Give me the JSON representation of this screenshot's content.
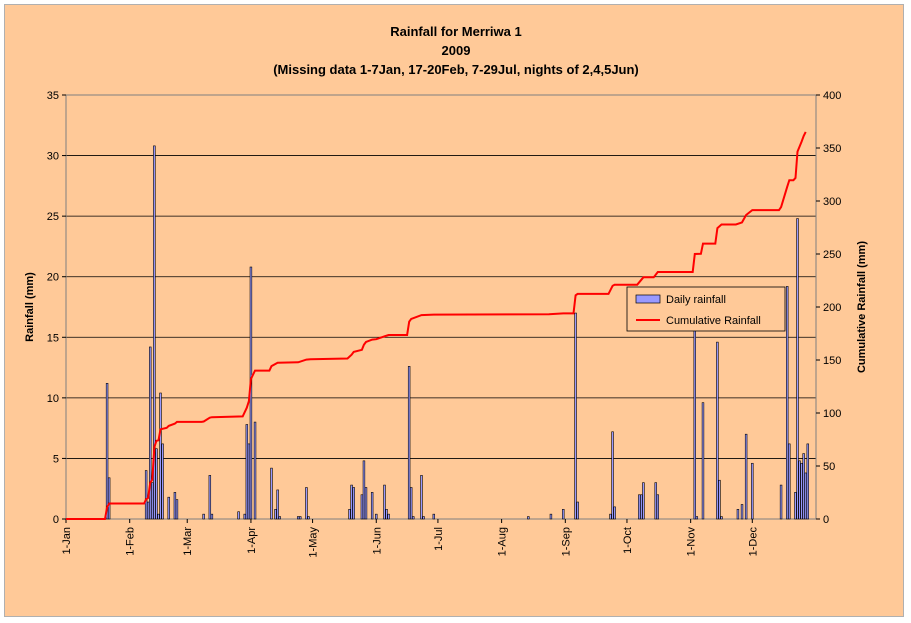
{
  "chart_data": {
    "type": "bar",
    "title": [
      "Rainfall for Merriwa 1",
      "2009",
      "(Missing data 1-7Jan, 17-20Feb, 7-29Jul, nights of 2,4,5Jun)"
    ],
    "xlabel": "",
    "ylabel": "Rainfall (mm)",
    "y2label": "Cumulative Rainfall (mm)",
    "ylim": [
      0,
      35
    ],
    "y2lim": [
      0,
      400
    ],
    "yticks": [
      0,
      5,
      10,
      15,
      20,
      25,
      30,
      35
    ],
    "y2ticks": [
      0,
      50,
      100,
      150,
      200,
      250,
      300,
      350,
      400
    ],
    "xticks": [
      {
        "label": "1-Jan",
        "day": 1
      },
      {
        "label": "1-Feb",
        "day": 32
      },
      {
        "label": "1-Mar",
        "day": 60
      },
      {
        "label": "1-Apr",
        "day": 91
      },
      {
        "label": "1-May",
        "day": 121
      },
      {
        "label": "1-Jun",
        "day": 152
      },
      {
        "label": "1-Jul",
        "day": 182
      },
      {
        "label": "1-Aug",
        "day": 213
      },
      {
        "label": "1-Sep",
        "day": 244
      },
      {
        "label": "1-Oct",
        "day": 274
      },
      {
        "label": "1-Nov",
        "day": 305
      },
      {
        "label": "1-Dec",
        "day": 335
      }
    ],
    "grid": true,
    "legend_position": "right",
    "series": [
      {
        "name": "Daily rainfall",
        "kind": "bar",
        "color": "#9999ff",
        "points": [
          {
            "day": 21,
            "value": 11.2
          },
          {
            "day": 22,
            "value": 3.4
          },
          {
            "day": 40,
            "value": 4.0
          },
          {
            "day": 41,
            "value": 1.4
          },
          {
            "day": 42,
            "value": 14.2
          },
          {
            "day": 43,
            "value": 3.0
          },
          {
            "day": 44,
            "value": 30.8
          },
          {
            "day": 45,
            "value": 5.8
          },
          {
            "day": 46,
            "value": 0.4
          },
          {
            "day": 47,
            "value": 10.4
          },
          {
            "day": 48,
            "value": 6.2
          },
          {
            "day": 51,
            "value": 1.8
          },
          {
            "day": 54,
            "value": 2.2
          },
          {
            "day": 55,
            "value": 1.6
          },
          {
            "day": 68,
            "value": 0.4
          },
          {
            "day": 71,
            "value": 3.6
          },
          {
            "day": 72,
            "value": 0.4
          },
          {
            "day": 85,
            "value": 0.6
          },
          {
            "day": 88,
            "value": 0.4
          },
          {
            "day": 89,
            "value": 7.8
          },
          {
            "day": 90,
            "value": 6.2
          },
          {
            "day": 91,
            "value": 20.8
          },
          {
            "day": 93,
            "value": 8.0
          },
          {
            "day": 101,
            "value": 4.2
          },
          {
            "day": 103,
            "value": 0.8
          },
          {
            "day": 104,
            "value": 2.4
          },
          {
            "day": 105,
            "value": 0.2
          },
          {
            "day": 114,
            "value": 0.2
          },
          {
            "day": 115,
            "value": 0.2
          },
          {
            "day": 118,
            "value": 2.6
          },
          {
            "day": 119,
            "value": 0.2
          },
          {
            "day": 139,
            "value": 0.8
          },
          {
            "day": 140,
            "value": 2.8
          },
          {
            "day": 141,
            "value": 2.6
          },
          {
            "day": 145,
            "value": 2.0
          },
          {
            "day": 146,
            "value": 4.8
          },
          {
            "day": 147,
            "value": 2.6
          },
          {
            "day": 150,
            "value": 2.2
          },
          {
            "day": 152,
            "value": 0.4
          },
          {
            "day": 156,
            "value": 2.8
          },
          {
            "day": 157,
            "value": 0.8
          },
          {
            "day": 158,
            "value": 0.4
          },
          {
            "day": 168,
            "value": 12.6
          },
          {
            "day": 169,
            "value": 2.6
          },
          {
            "day": 170,
            "value": 0.2
          },
          {
            "day": 174,
            "value": 3.6
          },
          {
            "day": 175,
            "value": 0.2
          },
          {
            "day": 180,
            "value": 0.4
          },
          {
            "day": 226,
            "value": 0.2
          },
          {
            "day": 237,
            "value": 0.4
          },
          {
            "day": 243,
            "value": 0.8
          },
          {
            "day": 249,
            "value": 17.0
          },
          {
            "day": 250,
            "value": 1.4
          },
          {
            "day": 266,
            "value": 0.4
          },
          {
            "day": 267,
            "value": 7.2
          },
          {
            "day": 268,
            "value": 1.0
          },
          {
            "day": 280,
            "value": 2.0
          },
          {
            "day": 281,
            "value": 2.0
          },
          {
            "day": 282,
            "value": 3.0
          },
          {
            "day": 288,
            "value": 3.0
          },
          {
            "day": 289,
            "value": 2.0
          },
          {
            "day": 307,
            "value": 17.0
          },
          {
            "day": 308,
            "value": 0.2
          },
          {
            "day": 311,
            "value": 9.6
          },
          {
            "day": 318,
            "value": 14.6
          },
          {
            "day": 319,
            "value": 3.2
          },
          {
            "day": 320,
            "value": 0.2
          },
          {
            "day": 328,
            "value": 0.8
          },
          {
            "day": 330,
            "value": 1.2
          },
          {
            "day": 332,
            "value": 7.0
          },
          {
            "day": 335,
            "value": 4.6
          },
          {
            "day": 349,
            "value": 2.8
          },
          {
            "day": 352,
            "value": 19.2
          },
          {
            "day": 353,
            "value": 6.2
          },
          {
            "day": 356,
            "value": 2.2
          },
          {
            "day": 357,
            "value": 24.8
          },
          {
            "day": 358,
            "value": 4.8
          },
          {
            "day": 359,
            "value": 4.6
          },
          {
            "day": 360,
            "value": 5.4
          },
          {
            "day": 361,
            "value": 3.8
          },
          {
            "day": 362,
            "value": 6.2
          }
        ]
      },
      {
        "name": "Cumulative Rainfall",
        "kind": "line",
        "axis": "right",
        "color": "#ff0000",
        "points": [
          {
            "day": 1,
            "value": 0
          },
          {
            "day": 20,
            "value": 0
          },
          {
            "day": 21,
            "value": 11.2
          },
          {
            "day": 22,
            "value": 14.6
          },
          {
            "day": 39,
            "value": 14.6
          },
          {
            "day": 40,
            "value": 18.6
          },
          {
            "day": 41,
            "value": 20.0
          },
          {
            "day": 42,
            "value": 34.2
          },
          {
            "day": 43,
            "value": 37.2
          },
          {
            "day": 44,
            "value": 68.0
          },
          {
            "day": 45,
            "value": 73.8
          },
          {
            "day": 46,
            "value": 74.2
          },
          {
            "day": 47,
            "value": 84.6
          },
          {
            "day": 50,
            "value": 86.0
          },
          {
            "day": 51,
            "value": 87.8
          },
          {
            "day": 54,
            "value": 90.0
          },
          {
            "day": 55,
            "value": 91.6
          },
          {
            "day": 67,
            "value": 91.6
          },
          {
            "day": 68,
            "value": 92.0
          },
          {
            "day": 71,
            "value": 95.6
          },
          {
            "day": 72,
            "value": 96.0
          },
          {
            "day": 87,
            "value": 96.8
          },
          {
            "day": 89,
            "value": 105.0
          },
          {
            "day": 90,
            "value": 111.2
          },
          {
            "day": 91,
            "value": 132.0
          },
          {
            "day": 93,
            "value": 140.0
          },
          {
            "day": 100,
            "value": 140.0
          },
          {
            "day": 101,
            "value": 144.2
          },
          {
            "day": 104,
            "value": 147.4
          },
          {
            "day": 114,
            "value": 147.8
          },
          {
            "day": 118,
            "value": 150.4
          },
          {
            "day": 120,
            "value": 150.8
          },
          {
            "day": 138,
            "value": 151.4
          },
          {
            "day": 140,
            "value": 155.0
          },
          {
            "day": 141,
            "value": 157.6
          },
          {
            "day": 145,
            "value": 159.6
          },
          {
            "day": 146,
            "value": 164.4
          },
          {
            "day": 147,
            "value": 167.0
          },
          {
            "day": 150,
            "value": 169.2
          },
          {
            "day": 152,
            "value": 169.6
          },
          {
            "day": 156,
            "value": 172.4
          },
          {
            "day": 158,
            "value": 173.6
          },
          {
            "day": 167,
            "value": 173.6
          },
          {
            "day": 168,
            "value": 186.2
          },
          {
            "day": 169,
            "value": 188.8
          },
          {
            "day": 174,
            "value": 192.4
          },
          {
            "day": 180,
            "value": 192.8
          },
          {
            "day": 236,
            "value": 193.2
          },
          {
            "day": 243,
            "value": 194.0
          },
          {
            "day": 248,
            "value": 194.0
          },
          {
            "day": 249,
            "value": 211.0
          },
          {
            "day": 250,
            "value": 212.4
          },
          {
            "day": 265,
            "value": 212.4
          },
          {
            "day": 267,
            "value": 220.0
          },
          {
            "day": 268,
            "value": 221.0
          },
          {
            "day": 279,
            "value": 221.0
          },
          {
            "day": 282,
            "value": 228.0
          },
          {
            "day": 287,
            "value": 228.0
          },
          {
            "day": 289,
            "value": 233.0
          },
          {
            "day": 306,
            "value": 233.0
          },
          {
            "day": 307,
            "value": 250.0
          },
          {
            "day": 310,
            "value": 250.2
          },
          {
            "day": 311,
            "value": 259.8
          },
          {
            "day": 317,
            "value": 259.8
          },
          {
            "day": 318,
            "value": 274.4
          },
          {
            "day": 320,
            "value": 277.8
          },
          {
            "day": 327,
            "value": 277.8
          },
          {
            "day": 330,
            "value": 279.8
          },
          {
            "day": 332,
            "value": 286.8
          },
          {
            "day": 335,
            "value": 291.4
          },
          {
            "day": 348,
            "value": 291.4
          },
          {
            "day": 349,
            "value": 294.2
          },
          {
            "day": 352,
            "value": 313.4
          },
          {
            "day": 353,
            "value": 319.6
          },
          {
            "day": 355,
            "value": 319.6
          },
          {
            "day": 356,
            "value": 321.8
          },
          {
            "day": 357,
            "value": 346.6
          },
          {
            "day": 358,
            "value": 351.4
          },
          {
            "day": 359,
            "value": 356.0
          },
          {
            "day": 360,
            "value": 361.4
          },
          {
            "day": 361,
            "value": 365.2
          }
        ]
      }
    ]
  }
}
